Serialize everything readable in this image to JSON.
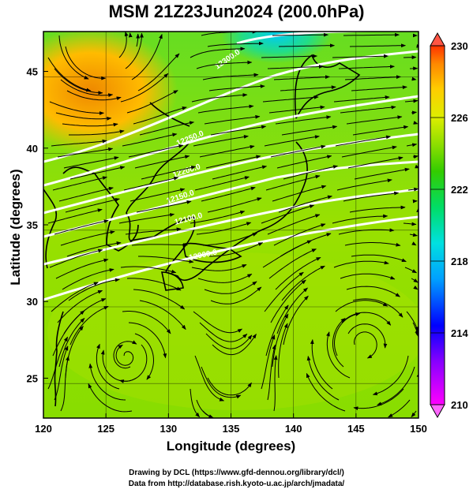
{
  "title": "MSM 21Z23Jun2024 (200.0hPa)",
  "xlabel": "Longitude (degrees)",
  "ylabel": "Latitude  (degrees)",
  "x_ticks": [
    120,
    125,
    130,
    135,
    140,
    145,
    150
  ],
  "y_ticks": [
    25,
    30,
    35,
    40,
    45
  ],
  "lon_range": [
    120,
    150
  ],
  "lat_range": [
    22.4,
    47.6
  ],
  "colorbar": {
    "ticks": [
      210,
      214,
      218,
      222,
      226,
      230
    ],
    "range": [
      210,
      230
    ],
    "colors": [
      "#ff00ff",
      "#8800ff",
      "#0000ff",
      "#00a0ff",
      "#00e0e0",
      "#00dd66",
      "#33cc00",
      "#88dd00",
      "#ddee00",
      "#ffcc00",
      "#ff8800",
      "#ff3300"
    ]
  },
  "contour_labels": [
    "12300.0",
    "12250.0",
    "12200.0",
    "12150.0",
    "12100.0",
    "12000.0"
  ],
  "credits": [
    "Drawing by DCL (https://www.gfd-dennou.org/library/dcl/)",
    "Data from http://database.rish.kyoto-u.ac.jp/arch/jmadata/"
  ]
}
